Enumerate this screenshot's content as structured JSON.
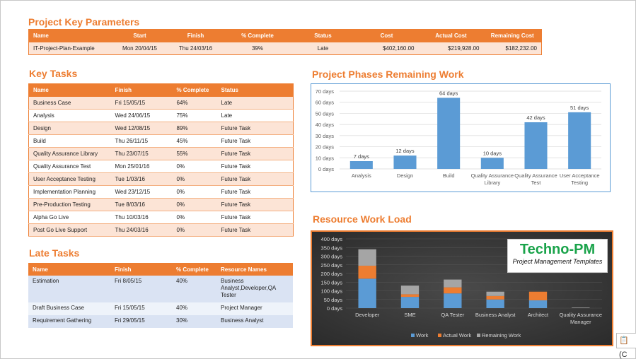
{
  "project_params": {
    "title": "Project Key Parameters",
    "headers": [
      "Name",
      "Start",
      "Finish",
      "% Complete",
      "Status",
      "Cost",
      "Actual Cost",
      "Remaining Cost"
    ],
    "row": [
      "IT-Project-Plan-Example",
      "Mon 20/04/15",
      "Thu 24/03/16",
      "39%",
      "Late",
      "$402,160.00",
      "$219,928.00",
      "$182,232.00"
    ]
  },
  "key_tasks": {
    "title": "Key Tasks",
    "headers": [
      "Name",
      "Finish",
      "% Complete",
      "Status"
    ],
    "rows": [
      [
        "Business Case",
        "Fri 15/05/15",
        "64%",
        "Late"
      ],
      [
        "Analysis",
        "Wed 24/06/15",
        "75%",
        "Late"
      ],
      [
        "Design",
        "Wed 12/08/15",
        "89%",
        "Future Task"
      ],
      [
        "Build",
        "Thu 26/11/15",
        "45%",
        "Future Task"
      ],
      [
        "Quality Assurance Library",
        "Thu 23/07/15",
        "55%",
        "Future Task"
      ],
      [
        "Quality Assurance Test",
        "Mon 25/01/16",
        "0%",
        "Future Task"
      ],
      [
        "User Acceptance Testing",
        "Tue 1/03/16",
        "0%",
        "Future Task"
      ],
      [
        "Implementation Planning",
        "Wed 23/12/15",
        "0%",
        "Future Task"
      ],
      [
        "Pre-Production Testing",
        "Tue 8/03/16",
        "0%",
        "Future Task"
      ],
      [
        "Alpha Go Live",
        "Thu 10/03/16",
        "0%",
        "Future Task"
      ],
      [
        "Post Go Live Support",
        "Thu 24/03/16",
        "0%",
        "Future Task"
      ]
    ]
  },
  "late_tasks": {
    "title": "Late Tasks",
    "headers": [
      "Name",
      "Finish",
      "% Complete",
      "Resource Names"
    ],
    "rows": [
      [
        "Estimation",
        "Fri 8/05/15",
        "40%",
        "Business Analyst,Developer,QA Tester"
      ],
      [
        "Draft Business Case",
        "Fri 15/05/15",
        "40%",
        "Project Manager"
      ],
      [
        "Requirement Gathering",
        "Fri 29/05/15",
        "30%",
        "Business Analyst"
      ]
    ]
  },
  "phases_chart_title": "Project Phases Remaining Work",
  "resource_chart_title": "Resource Work Load",
  "logo": {
    "title": "Techno-PM",
    "subtitle": "Project Management Templates"
  },
  "corner_icon_text": "(C",
  "chart_data": [
    {
      "type": "bar",
      "title": "Project Phases Remaining Work",
      "categories": [
        "Analysis",
        "Design",
        "Build",
        "Quality Assurance Library",
        "Quality Assurance Test",
        "User Acceptance Testing"
      ],
      "values": [
        7,
        12,
        64,
        10,
        42,
        51
      ],
      "data_labels": [
        "7 days",
        "12 days",
        "64 days",
        "10 days",
        "42 days",
        "51 days"
      ],
      "y_ticks": [
        "0 days",
        "10 days",
        "20 days",
        "30 days",
        "40 days",
        "50 days",
        "60 days",
        "70 days"
      ],
      "ylim": [
        0,
        70
      ],
      "color": "#5b9bd5",
      "grid": true
    },
    {
      "type": "bar",
      "stacked": true,
      "title": "Resource Work Load",
      "categories": [
        "Developer",
        "SME",
        "QA Tester",
        "Business Analyst",
        "Architect",
        "Quality Assurance Manager"
      ],
      "series": [
        {
          "name": "Work",
          "color": "#5b9bd5",
          "values": [
            170,
            65,
            85,
            50,
            45,
            0
          ]
        },
        {
          "name": "Actual Work",
          "color": "#ed7d31",
          "values": [
            75,
            15,
            35,
            20,
            50,
            0
          ]
        },
        {
          "name": "Remaining Work",
          "color": "#a5a5a5",
          "values": [
            95,
            50,
            45,
            25,
            0,
            3
          ]
        }
      ],
      "y_ticks": [
        "0 days",
        "50 days",
        "100 days",
        "150 days",
        "200 days",
        "250 days",
        "300 days",
        "350 days",
        "400 days"
      ],
      "ylim": [
        0,
        400
      ],
      "legend": "bottom",
      "grid": true
    }
  ]
}
